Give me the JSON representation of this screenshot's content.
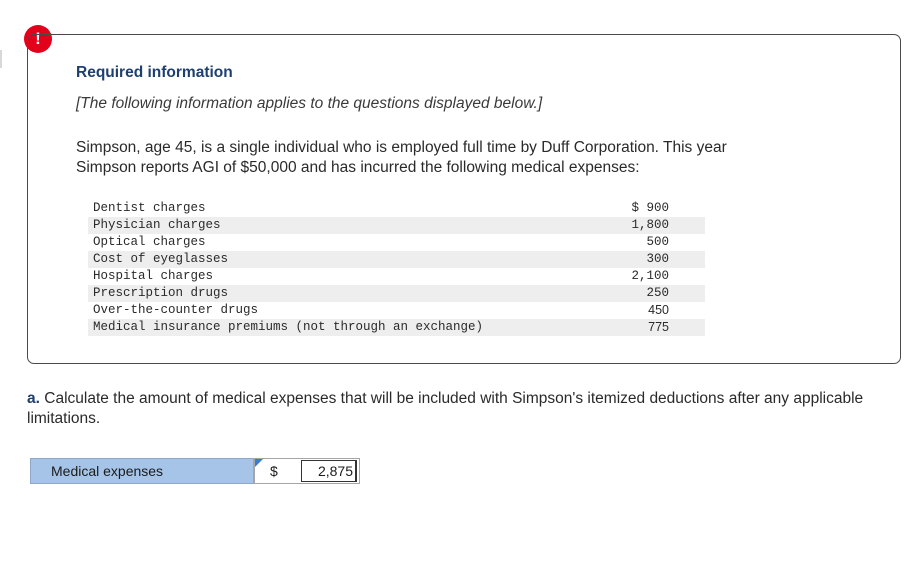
{
  "alert": {
    "glyph": "!"
  },
  "required": {
    "title": "Required information",
    "subtitle": "[The following information applies to the questions displayed below.]",
    "scenario_line1": "Simpson, age 45, is a single individual who is employed full time by Duff Corporation. This year",
    "scenario_line2": "Simpson reports AGI of $50,000 and has incurred the following medical expenses:"
  },
  "expenses": [
    {
      "label": "Dentist charges",
      "amount": "$ 900"
    },
    {
      "label": "Physician charges",
      "amount": "1,800"
    },
    {
      "label": "Optical charges",
      "amount": "500"
    },
    {
      "label": "Cost of eyeglasses",
      "amount": "300"
    },
    {
      "label": "Hospital charges",
      "amount": "2,100"
    },
    {
      "label": "Prescription drugs",
      "amount": "250"
    },
    {
      "label": "Over-the-counter drugs",
      "amount": "450"
    },
    {
      "label": "Medical insurance premiums (not through an exchange)",
      "amount": "775"
    }
  ],
  "question": {
    "part": "a.",
    "text": "Calculate the amount of medical expenses that will be included with Simpson's itemized deductions after any applicable limitations."
  },
  "answer": {
    "label": "Medical expenses",
    "currency": "$",
    "value": "2,875"
  },
  "colors": {
    "alert_red": "#e2001a",
    "heading_blue": "#1f3f6e",
    "label_fill": "#a5c4e8",
    "flag_blue": "#3b7bd4"
  }
}
